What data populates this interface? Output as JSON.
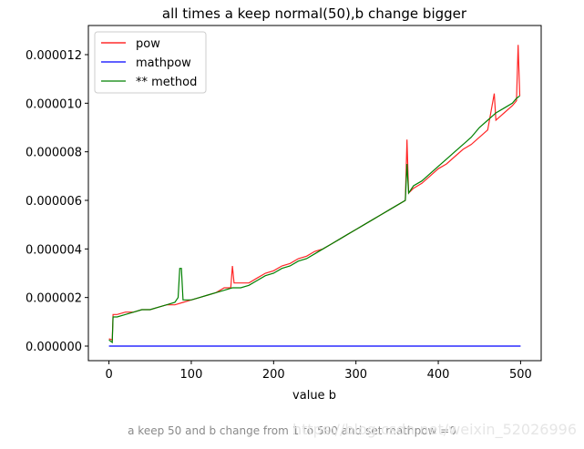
{
  "caption": "a keep 50 and b change from 1 to 500 and set mathpow =0",
  "watermark": "https://blog.csdn.net/weixin_52026996",
  "chart_data": {
    "type": "line",
    "title": "all times a keep normal(50),b change bigger",
    "xlabel": "value b",
    "ylabel": "",
    "xlim": [
      -25,
      525
    ],
    "ylim": [
      -6e-07,
      1.32e-05
    ],
    "xticks": [
      0,
      100,
      200,
      300,
      400,
      500
    ],
    "xtick_labels": [
      "0",
      "100",
      "200",
      "300",
      "400",
      "500"
    ],
    "yticks": [
      0,
      2e-06,
      4e-06,
      6e-06,
      8e-06,
      1e-05,
      1.2e-05
    ],
    "ytick_labels": [
      "0.000000",
      "0.000002",
      "0.000004",
      "0.000006",
      "0.000008",
      "0.000010",
      "0.000012"
    ],
    "grid": false,
    "legend_position": "top-left",
    "series": [
      {
        "name": "pow",
        "color": "#ff0000",
        "x": [
          0,
          4,
          5,
          10,
          20,
          30,
          40,
          50,
          60,
          70,
          80,
          90,
          100,
          110,
          120,
          130,
          140,
          148,
          150,
          152,
          160,
          170,
          180,
          190,
          200,
          210,
          220,
          230,
          240,
          250,
          260,
          270,
          280,
          290,
          300,
          310,
          320,
          330,
          340,
          350,
          355,
          360,
          362,
          364,
          370,
          380,
          390,
          400,
          410,
          420,
          430,
          440,
          450,
          460,
          468,
          470,
          480,
          490,
          495,
          497,
          499
        ],
        "y": [
          3e-07,
          2.5e-07,
          1.3e-06,
          1.3e-06,
          1.4e-06,
          1.4e-06,
          1.5e-06,
          1.5e-06,
          1.6e-06,
          1.7e-06,
          1.7e-06,
          1.8e-06,
          1.9e-06,
          2e-06,
          2.1e-06,
          2.2e-06,
          2.4e-06,
          2.4e-06,
          3.3e-06,
          2.6e-06,
          2.6e-06,
          2.6e-06,
          2.8e-06,
          3e-06,
          3.1e-06,
          3.3e-06,
          3.4e-06,
          3.6e-06,
          3.7e-06,
          3.9e-06,
          4e-06,
          4.2e-06,
          4.4e-06,
          4.6e-06,
          4.8e-06,
          5e-06,
          5.2e-06,
          5.4e-06,
          5.6e-06,
          5.8e-06,
          5.9e-06,
          6e-06,
          8.5e-06,
          6.3e-06,
          6.5e-06,
          6.7e-06,
          7e-06,
          7.3e-06,
          7.5e-06,
          7.8e-06,
          8.1e-06,
          8.3e-06,
          8.6e-06,
          8.9e-06,
          1.04e-05,
          9.3e-06,
          9.6e-06,
          9.9e-06,
          1.01e-05,
          1.24e-05,
          1.03e-05
        ]
      },
      {
        "name": "mathpow",
        "color": "#0000ff",
        "x": [
          0,
          500
        ],
        "y": [
          0,
          0
        ]
      },
      {
        "name": "** method",
        "color": "#008000",
        "x": [
          0,
          4,
          5,
          10,
          20,
          30,
          40,
          50,
          60,
          70,
          80,
          84,
          86,
          88,
          90,
          92,
          100,
          110,
          120,
          130,
          140,
          150,
          160,
          170,
          180,
          190,
          200,
          210,
          220,
          230,
          240,
          250,
          260,
          270,
          280,
          290,
          300,
          310,
          320,
          330,
          340,
          350,
          360,
          362,
          364,
          370,
          380,
          390,
          400,
          410,
          420,
          430,
          440,
          450,
          460,
          470,
          480,
          490,
          495,
          499
        ],
        "y": [
          2.5e-07,
          1.5e-07,
          1.2e-06,
          1.2e-06,
          1.3e-06,
          1.4e-06,
          1.5e-06,
          1.5e-06,
          1.6e-06,
          1.7e-06,
          1.8e-06,
          2e-06,
          3.2e-06,
          3.2e-06,
          1.9e-06,
          1.9e-06,
          1.9e-06,
          2e-06,
          2.1e-06,
          2.2e-06,
          2.3e-06,
          2.4e-06,
          2.4e-06,
          2.5e-06,
          2.7e-06,
          2.9e-06,
          3e-06,
          3.2e-06,
          3.3e-06,
          3.5e-06,
          3.6e-06,
          3.8e-06,
          4e-06,
          4.2e-06,
          4.4e-06,
          4.6e-06,
          4.8e-06,
          5e-06,
          5.2e-06,
          5.4e-06,
          5.6e-06,
          5.8e-06,
          6e-06,
          7.5e-06,
          6.3e-06,
          6.6e-06,
          6.8e-06,
          7.1e-06,
          7.4e-06,
          7.7e-06,
          8e-06,
          8.3e-06,
          8.6e-06,
          9e-06,
          9.3e-06,
          9.6e-06,
          9.8e-06,
          1e-05,
          1.02e-05,
          1.03e-05
        ]
      }
    ]
  }
}
